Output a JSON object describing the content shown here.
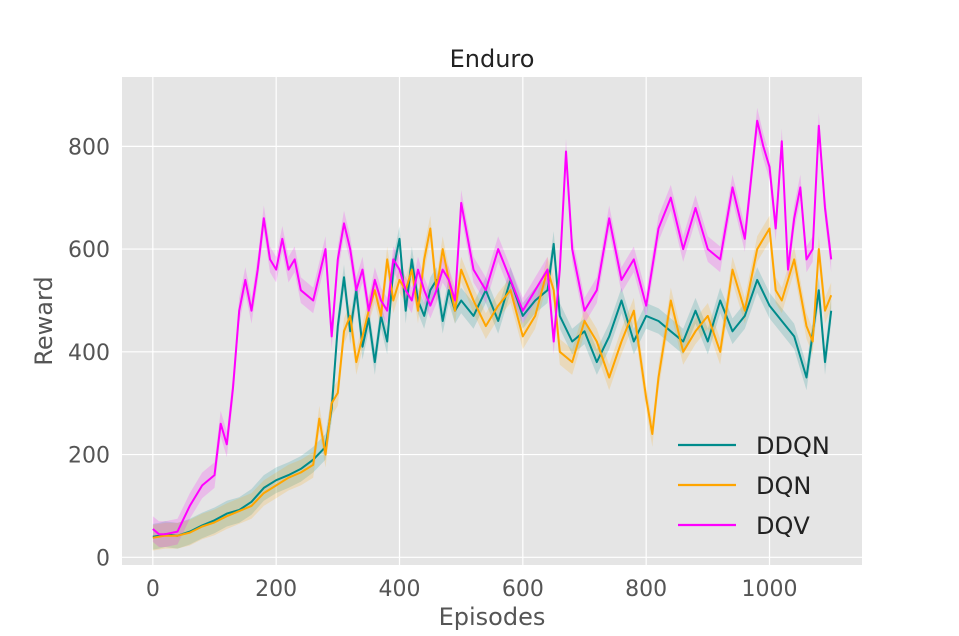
{
  "chart_data": {
    "type": "line",
    "title": "Enduro",
    "xlabel": "Episodes",
    "ylabel": "Reward",
    "xlim": [
      -50,
      1150
    ],
    "ylim": [
      -15,
      935
    ],
    "xticks": [
      "0",
      "200",
      "400",
      "600",
      "800",
      "1000"
    ],
    "yticks": [
      "0",
      "200",
      "400",
      "600",
      "800"
    ],
    "grid": true,
    "background": "#e5e5e5",
    "legend_position": "bottom-right",
    "series": [
      {
        "name": "DDQN",
        "color": "#008b8b",
        "x": [
          0,
          10,
          20,
          40,
          60,
          80,
          100,
          120,
          140,
          160,
          180,
          200,
          220,
          240,
          260,
          280,
          290,
          300,
          310,
          320,
          330,
          340,
          350,
          360,
          370,
          380,
          390,
          400,
          410,
          420,
          430,
          440,
          450,
          460,
          470,
          480,
          490,
          500,
          520,
          540,
          560,
          580,
          600,
          620,
          640,
          650,
          660,
          680,
          700,
          720,
          740,
          760,
          780,
          800,
          820,
          840,
          860,
          880,
          900,
          920,
          940,
          960,
          980,
          1000,
          1020,
          1040,
          1060,
          1080,
          1090,
          1100
        ],
        "y": [
          40,
          42,
          45,
          42,
          50,
          62,
          72,
          85,
          92,
          108,
          135,
          150,
          160,
          172,
          190,
          215,
          290,
          450,
          545,
          440,
          520,
          410,
          465,
          380,
          470,
          420,
          560,
          620,
          480,
          580,
          500,
          470,
          520,
          540,
          460,
          520,
          480,
          500,
          470,
          520,
          460,
          540,
          470,
          500,
          520,
          610,
          470,
          420,
          440,
          380,
          430,
          500,
          420,
          470,
          460,
          440,
          420,
          480,
          420,
          500,
          440,
          470,
          540,
          490,
          460,
          430,
          350,
          520,
          380,
          480
        ]
      },
      {
        "name": "DQN",
        "color": "#ffa500",
        "x": [
          0,
          10,
          20,
          40,
          60,
          80,
          100,
          120,
          140,
          160,
          180,
          200,
          220,
          240,
          260,
          270,
          280,
          290,
          300,
          310,
          320,
          330,
          340,
          350,
          360,
          370,
          380,
          390,
          400,
          410,
          420,
          430,
          440,
          450,
          460,
          470,
          480,
          490,
          500,
          520,
          540,
          560,
          580,
          600,
          620,
          640,
          650,
          660,
          680,
          700,
          720,
          740,
          760,
          780,
          800,
          810,
          820,
          840,
          860,
          880,
          900,
          920,
          940,
          960,
          980,
          1000,
          1010,
          1020,
          1040,
          1060,
          1070,
          1080,
          1090,
          1100
        ],
        "y": [
          38,
          40,
          42,
          42,
          48,
          60,
          68,
          80,
          90,
          100,
          125,
          140,
          155,
          165,
          180,
          270,
          200,
          300,
          320,
          440,
          470,
          380,
          430,
          480,
          520,
          470,
          580,
          500,
          540,
          520,
          560,
          480,
          580,
          640,
          520,
          600,
          540,
          480,
          560,
          500,
          450,
          490,
          520,
          430,
          470,
          560,
          520,
          400,
          380,
          460,
          420,
          350,
          420,
          480,
          310,
          240,
          350,
          500,
          400,
          440,
          470,
          400,
          560,
          480,
          600,
          640,
          520,
          500,
          580,
          450,
          420,
          600,
          480,
          510
        ]
      },
      {
        "name": "DQV",
        "color": "#ff00ff",
        "x": [
          0,
          10,
          20,
          40,
          60,
          80,
          100,
          110,
          120,
          130,
          140,
          150,
          160,
          170,
          180,
          190,
          200,
          210,
          220,
          230,
          240,
          260,
          280,
          290,
          300,
          310,
          320,
          330,
          340,
          350,
          360,
          370,
          380,
          390,
          400,
          410,
          420,
          430,
          440,
          450,
          460,
          470,
          480,
          490,
          500,
          520,
          540,
          560,
          580,
          600,
          620,
          640,
          650,
          660,
          670,
          680,
          700,
          720,
          740,
          760,
          780,
          800,
          820,
          840,
          860,
          880,
          900,
          920,
          940,
          960,
          980,
          990,
          1000,
          1010,
          1020,
          1030,
          1040,
          1050,
          1060,
          1070,
          1080,
          1090,
          1100
        ],
        "y": [
          55,
          45,
          45,
          50,
          100,
          140,
          160,
          260,
          220,
          330,
          480,
          540,
          480,
          560,
          660,
          580,
          560,
          620,
          560,
          580,
          520,
          500,
          600,
          430,
          580,
          650,
          600,
          520,
          560,
          480,
          540,
          500,
          480,
          580,
          560,
          520,
          500,
          560,
          520,
          490,
          520,
          560,
          540,
          500,
          690,
          560,
          520,
          600,
          540,
          480,
          520,
          560,
          420,
          560,
          790,
          600,
          480,
          520,
          660,
          540,
          580,
          490,
          640,
          700,
          600,
          680,
          600,
          580,
          720,
          620,
          850,
          800,
          760,
          640,
          810,
          560,
          660,
          720,
          580,
          600,
          840,
          680,
          580
        ]
      }
    ]
  }
}
